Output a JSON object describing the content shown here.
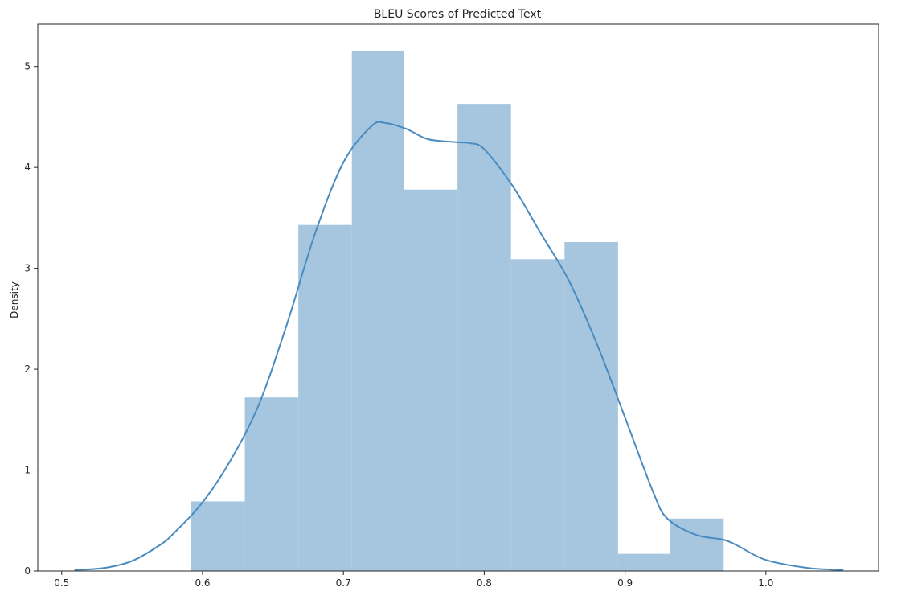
{
  "chart_data": {
    "type": "bar",
    "subtype": "histogram-with-kde",
    "title": "BLEU Scores of Predicted Text",
    "xlabel": "",
    "ylabel": "Density",
    "xlim": [
      0.483,
      1.08
    ],
    "ylim": [
      0,
      5.42
    ],
    "xticks": [
      0.5,
      0.6,
      0.7,
      0.8,
      0.9,
      1.0
    ],
    "xtick_labels": [
      "0.5",
      "0.6",
      "0.7",
      "0.8",
      "0.9",
      "1.0"
    ],
    "yticks": [
      0,
      1,
      2,
      3,
      4,
      5
    ],
    "ytick_labels": [
      "0",
      "1",
      "2",
      "3",
      "4",
      "5"
    ],
    "bins": [
      {
        "x0": 0.592,
        "x1": 0.63,
        "density": 0.69
      },
      {
        "x0": 0.63,
        "x1": 0.668,
        "density": 1.72
      },
      {
        "x0": 0.668,
        "x1": 0.706,
        "density": 3.43
      },
      {
        "x0": 0.706,
        "x1": 0.743,
        "density": 5.15
      },
      {
        "x0": 0.743,
        "x1": 0.781,
        "density": 3.78
      },
      {
        "x0": 0.781,
        "x1": 0.819,
        "density": 4.63
      },
      {
        "x0": 0.819,
        "x1": 0.857,
        "density": 3.09
      },
      {
        "x0": 0.857,
        "x1": 0.895,
        "density": 3.26
      },
      {
        "x0": 0.895,
        "x1": 0.932,
        "density": 0.17
      },
      {
        "x0": 0.932,
        "x1": 0.97,
        "density": 0.52
      }
    ],
    "kde": {
      "x": [
        0.509,
        0.53,
        0.55,
        0.57,
        0.58,
        0.6,
        0.62,
        0.64,
        0.66,
        0.68,
        0.7,
        0.72,
        0.73,
        0.745,
        0.76,
        0.78,
        0.79,
        0.8,
        0.82,
        0.84,
        0.86,
        0.88,
        0.9,
        0.92,
        0.93,
        0.95,
        0.97,
        0.98,
        1.0,
        1.03,
        1.055
      ],
      "y": [
        0.01,
        0.03,
        0.1,
        0.26,
        0.38,
        0.68,
        1.1,
        1.65,
        2.45,
        3.35,
        4.05,
        4.41,
        4.44,
        4.38,
        4.28,
        4.25,
        4.24,
        4.18,
        3.82,
        3.35,
        2.88,
        2.25,
        1.52,
        0.78,
        0.52,
        0.36,
        0.31,
        0.25,
        0.11,
        0.03,
        0.01
      ]
    },
    "colors": {
      "bar_fill": "#a6c6df",
      "kde_line": "#4a8bbf",
      "axis": "#262626"
    },
    "grid": false,
    "legend": "none"
  }
}
